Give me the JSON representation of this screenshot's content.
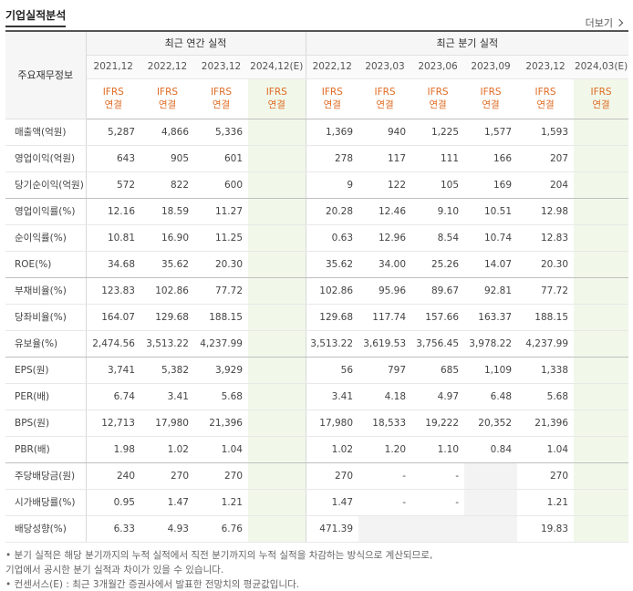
{
  "section": {
    "title": "기업실적분석",
    "more_label": "더보기"
  },
  "header": {
    "label_col": "주요재무정보",
    "annual_title": "최근 연간 실적",
    "quarterly_title": "최근 분기 실적",
    "periods": [
      "2021,12",
      "2022,12",
      "2023,12",
      "2024,12(E)",
      "2022,12",
      "2023,03",
      "2023,06",
      "2023,09",
      "2023,12",
      "2024,03(E)"
    ],
    "ifrs_top": "IFRS",
    "ifrs_bottom": "연결"
  },
  "rows": [
    {
      "label": "매출액(억원)",
      "values": [
        "5,287",
        "4,866",
        "5,336",
        "",
        "1,369",
        "940",
        "1,225",
        "1,577",
        "1,593",
        ""
      ]
    },
    {
      "label": "영업이익(억원)",
      "values": [
        "643",
        "905",
        "601",
        "",
        "278",
        "117",
        "111",
        "166",
        "207",
        ""
      ]
    },
    {
      "label": "당기순이익(억원)",
      "values": [
        "572",
        "822",
        "600",
        "",
        "9",
        "122",
        "105",
        "169",
        "204",
        ""
      ]
    },
    {
      "label": "영업이익률(%)",
      "values": [
        "12.16",
        "18.59",
        "11.27",
        "",
        "20.28",
        "12.46",
        "9.10",
        "10.51",
        "12.98",
        ""
      ]
    },
    {
      "label": "순이익률(%)",
      "values": [
        "10.81",
        "16.90",
        "11.25",
        "",
        "0.63",
        "12.96",
        "8.54",
        "10.74",
        "12.83",
        ""
      ]
    },
    {
      "label": "ROE(%)",
      "values": [
        "34.68",
        "35.62",
        "20.30",
        "",
        "35.62",
        "34.00",
        "25.26",
        "14.07",
        "20.30",
        ""
      ]
    },
    {
      "label": "부채비율(%)",
      "values": [
        "123.83",
        "102.86",
        "77.72",
        "",
        "102.86",
        "95.96",
        "89.67",
        "92.81",
        "77.72",
        ""
      ]
    },
    {
      "label": "당좌비율(%)",
      "values": [
        "164.07",
        "129.68",
        "188.15",
        "",
        "129.68",
        "117.74",
        "157.66",
        "163.37",
        "188.15",
        ""
      ]
    },
    {
      "label": "유보율(%)",
      "values": [
        "2,474.56",
        "3,513.22",
        "4,237.99",
        "",
        "3,513.22",
        "3,619.53",
        "3,756.45",
        "3,978.22",
        "4,237.99",
        ""
      ]
    },
    {
      "label": "EPS(원)",
      "values": [
        "3,741",
        "5,382",
        "3,929",
        "",
        "56",
        "797",
        "685",
        "1,109",
        "1,338",
        ""
      ]
    },
    {
      "label": "PER(배)",
      "values": [
        "6.74",
        "3.41",
        "5.68",
        "",
        "3.41",
        "4.18",
        "4.97",
        "6.48",
        "5.68",
        ""
      ]
    },
    {
      "label": "BPS(원)",
      "values": [
        "12,713",
        "17,980",
        "21,396",
        "",
        "17,980",
        "18,533",
        "19,222",
        "20,352",
        "21,396",
        ""
      ]
    },
    {
      "label": "PBR(배)",
      "values": [
        "1.98",
        "1.02",
        "1.04",
        "",
        "1.02",
        "1.20",
        "1.10",
        "0.84",
        "1.04",
        ""
      ]
    },
    {
      "label": "주당배당금(원)",
      "values": [
        "240",
        "270",
        "270",
        "",
        "270",
        "-",
        "-",
        "",
        "270",
        ""
      ]
    },
    {
      "label": "시가배당률(%)",
      "values": [
        "0.95",
        "1.47",
        "1.21",
        "",
        "1.47",
        "-",
        "-",
        "",
        "1.21",
        ""
      ]
    },
    {
      "label": "배당성향(%)",
      "values": [
        "6.33",
        "4.93",
        "6.76",
        "",
        "471.39",
        "",
        "",
        "",
        "19.83",
        ""
      ]
    }
  ],
  "notes": [
    "• 분기 실적은 해당 분기까지의 누적 실적에서 직전 분기까지의 누적 실적을 차감하는 방식으로 계산되므로,",
    "   기업에서 공시한 분기 실적과 차이가 있을 수 있습니다.",
    "• 컨센서스(E) : 최근 3개월간 증권사에서 발표한 전망치의 평균값입니다."
  ],
  "colors": {
    "ifrs": "#e06b23",
    "estimate_bg": "#f1f8ea",
    "na_bg": "#f3f3f3"
  }
}
